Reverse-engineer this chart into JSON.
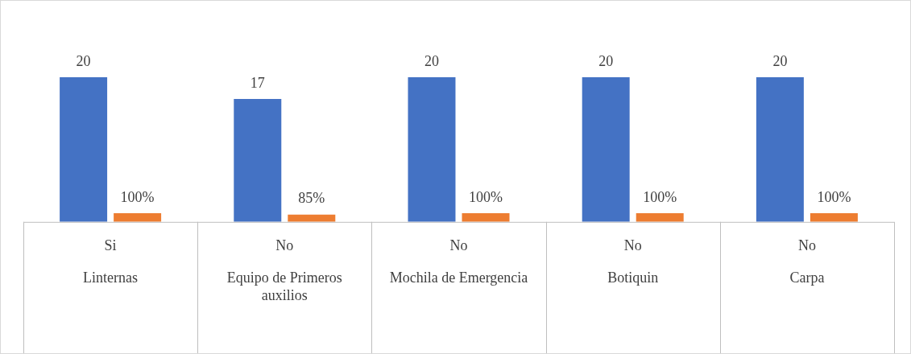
{
  "chart_data": {
    "type": "bar",
    "categories": [
      "Linternas",
      "Equipo de Primeros auxilios",
      "Mochila de Emergencia",
      "Botiquin",
      "Carpa"
    ],
    "series": [
      {
        "color": "#4472c4",
        "values": [
          20,
          17,
          20,
          20,
          20
        ]
      },
      {
        "color": "#ed7d31",
        "axis": "y2",
        "values": [
          100,
          85,
          100,
          100,
          100
        ],
        "value_labels": [
          "100%",
          "85%",
          "100%",
          "100%",
          "100%"
        ]
      }
    ],
    "data_labels": true,
    "grid": false,
    "legend": false,
    "annotations": [
      "Si",
      "No",
      "No",
      "No",
      "No"
    ]
  }
}
